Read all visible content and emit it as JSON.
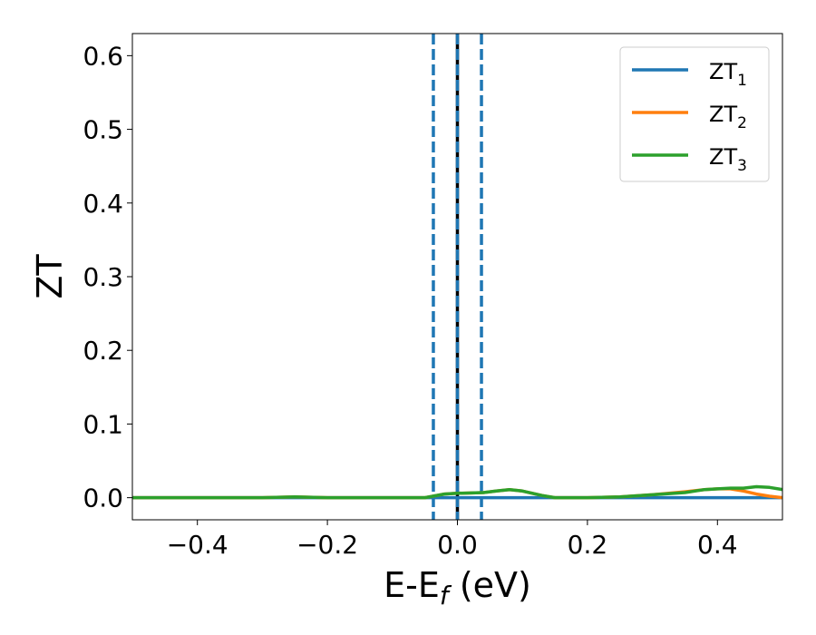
{
  "chart_data": {
    "type": "line",
    "xlabel": "E-E",
    "xlabel_sub": "f",
    "xlabel_unit": " (eV)",
    "ylabel": "ZT",
    "xlim": [
      -0.5,
      0.5
    ],
    "ylim": [
      -0.03,
      0.63
    ],
    "xticks": [
      -0.4,
      -0.2,
      0.0,
      0.2,
      0.4
    ],
    "xtick_labels": [
      "−0.4",
      "−0.2",
      "0.0",
      "0.2",
      "0.4"
    ],
    "yticks": [
      0.0,
      0.1,
      0.2,
      0.3,
      0.4,
      0.5,
      0.6
    ],
    "ytick_labels": [
      "0.0",
      "0.1",
      "0.2",
      "0.3",
      "0.4",
      "0.5",
      "0.6"
    ],
    "grid": false,
    "legend_position": "top-right",
    "vertical_lines": [
      {
        "x": -0.037,
        "style": "dashed",
        "color": "#1f77b4"
      },
      {
        "x": 0.0,
        "style": "solid",
        "color": "#000000"
      },
      {
        "x": 0.0,
        "style": "dashed",
        "color": "#1f77b4"
      },
      {
        "x": 0.037,
        "style": "dashed",
        "color": "#1f77b4"
      }
    ],
    "series": [
      {
        "name": "ZT",
        "name_sub": "1",
        "color": "#1f77b4",
        "x": [
          -0.5,
          -0.3,
          -0.1,
          -0.04,
          0.0,
          0.04,
          0.1,
          0.2,
          0.3,
          0.4,
          0.5
        ],
        "y": [
          0,
          0,
          0,
          0,
          0,
          0,
          0,
          0,
          0,
          0,
          0
        ]
      },
      {
        "name": "ZT",
        "name_sub": "2",
        "color": "#ff7f0e",
        "x": [
          -0.5,
          -0.4,
          -0.3,
          -0.25,
          -0.2,
          -0.1,
          -0.05,
          -0.02,
          0.0,
          0.04,
          0.06,
          0.08,
          0.1,
          0.13,
          0.15,
          0.2,
          0.25,
          0.3,
          0.35,
          0.38,
          0.4,
          0.42,
          0.44,
          0.46,
          0.48,
          0.5
        ],
        "y": [
          0.0,
          0.0,
          0.0,
          0.001,
          0.0,
          0.0,
          0.0,
          0.005,
          0.006,
          0.007,
          0.009,
          0.011,
          0.009,
          0.003,
          0.0,
          0.0,
          0.001,
          0.004,
          0.008,
          0.011,
          0.012,
          0.012,
          0.009,
          0.005,
          0.002,
          0.0
        ]
      },
      {
        "name": "ZT",
        "name_sub": "3",
        "color": "#2ca02c",
        "x": [
          -0.5,
          -0.4,
          -0.3,
          -0.25,
          -0.2,
          -0.1,
          -0.05,
          -0.02,
          0.0,
          0.04,
          0.06,
          0.08,
          0.1,
          0.13,
          0.15,
          0.2,
          0.25,
          0.3,
          0.35,
          0.38,
          0.4,
          0.42,
          0.44,
          0.46,
          0.48,
          0.5
        ],
        "y": [
          0.0,
          0.0,
          0.0,
          0.001,
          0.0,
          0.0,
          0.0,
          0.005,
          0.006,
          0.007,
          0.009,
          0.011,
          0.009,
          0.003,
          0.0,
          0.0,
          0.001,
          0.004,
          0.007,
          0.011,
          0.012,
          0.013,
          0.013,
          0.015,
          0.014,
          0.011
        ]
      }
    ]
  }
}
